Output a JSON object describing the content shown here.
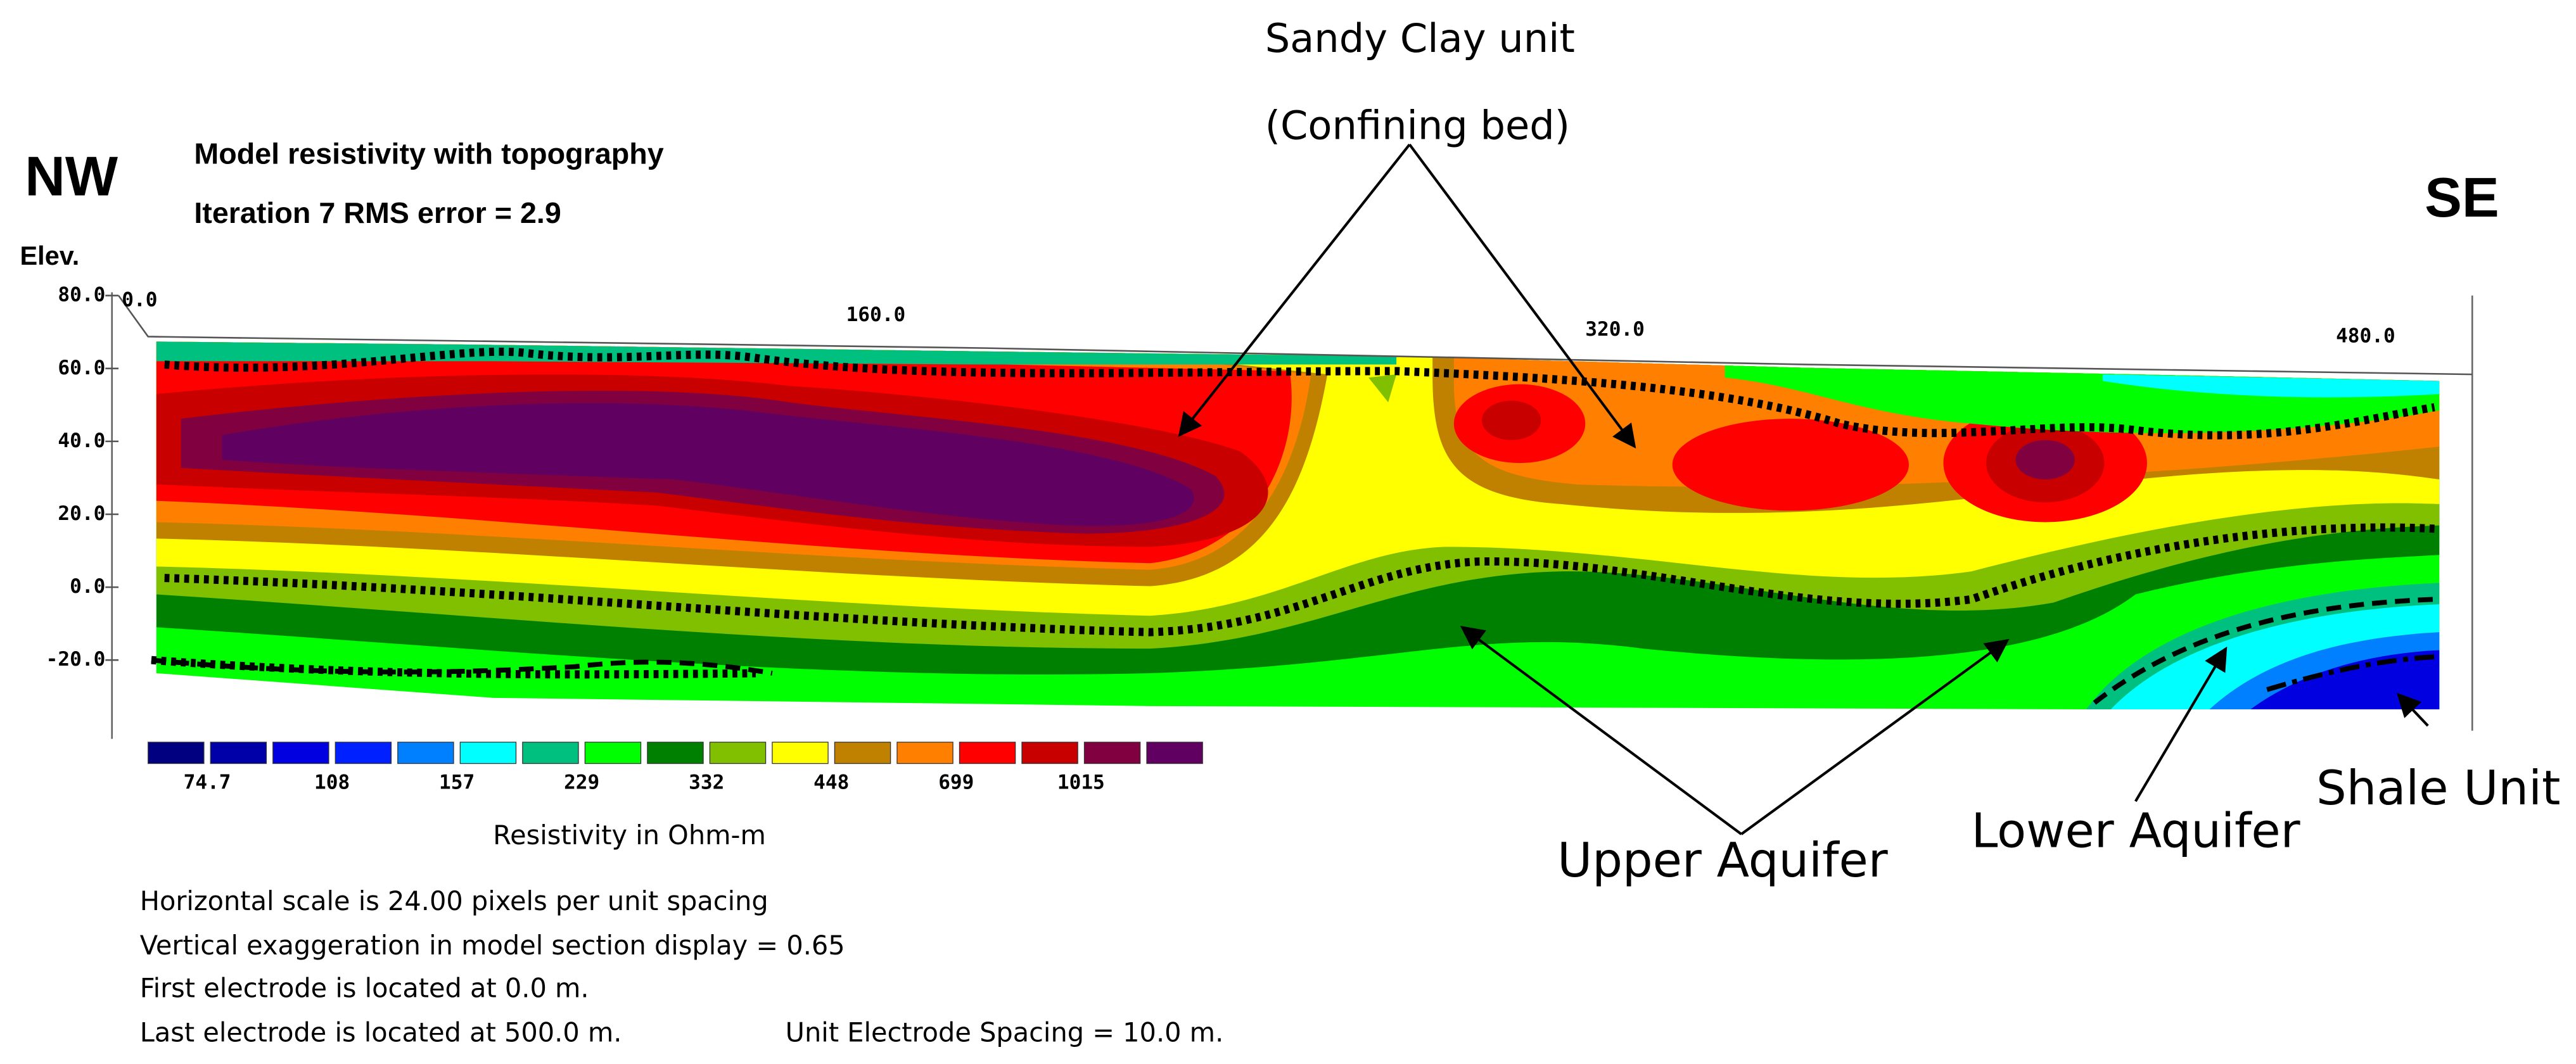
{
  "header": {
    "nw": "NW",
    "se": "SE",
    "title": "Model resistivity with topography",
    "iteration": "Iteration  7 RMS error = 2.9",
    "elev": "Elev."
  },
  "axes": {
    "y_ticks": [
      "80.0",
      "60.0",
      "40.0",
      "20.0",
      "0.0",
      "-20.0"
    ],
    "x_ticks": [
      "0.0",
      "160.0",
      "320.0",
      "480.0"
    ]
  },
  "legend": {
    "colors": [
      "#000080",
      "#0000a8",
      "#0000e0",
      "#0020ff",
      "#0080ff",
      "#00ffff",
      "#00c080",
      "#00ff00",
      "#008000",
      "#80c000",
      "#ffff00",
      "#c08000",
      "#ff8000",
      "#ff0000",
      "#c80000",
      "#800040",
      "#600060"
    ],
    "labels": [
      "74.7",
      "108",
      "157",
      "229",
      "332",
      "448",
      "699",
      "1015"
    ],
    "caption": "Resistivity in Ohm-m"
  },
  "notes": [
    "Horizontal  scale is 24.00 pixels per unit spacing",
    "Vertical exaggeration in model section display = 0.65",
    "First electrode is located at 0.0  m.",
    "Last electrode is located at 500.0 m.",
    "Unit Electrode Spacing = 10.0 m."
  ],
  "annotations": {
    "sandy_clay": "Sandy Clay unit",
    "confining": "(Confining bed)",
    "upper_aquifer": "Upper Aquifer",
    "lower_aquifer": "Lower Aquifer",
    "shale": "Shale Unit"
  }
}
